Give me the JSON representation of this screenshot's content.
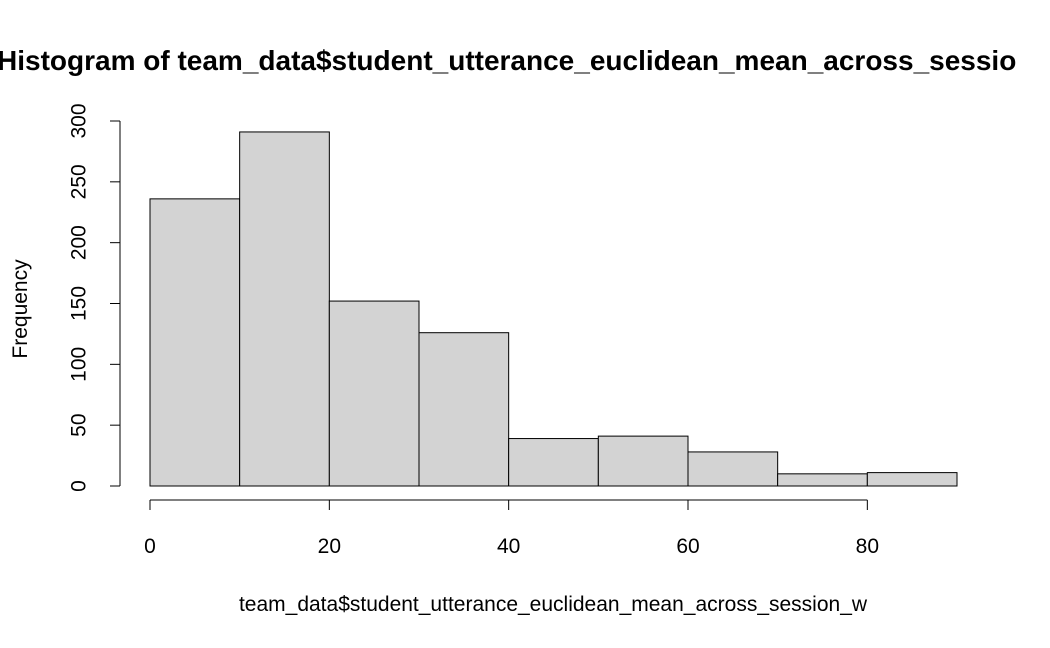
{
  "chart_data": {
    "type": "bar",
    "title": "Histogram of team_data$student_utterance_euclidean_mean_across_sessio",
    "xlabel": "team_data$student_utterance_euclidean_mean_across_session_w",
    "ylabel": "Frequency",
    "bin_edges": [
      0,
      10,
      20,
      30,
      40,
      50,
      60,
      70,
      80,
      90
    ],
    "categories": [
      "0-10",
      "10-20",
      "20-30",
      "30-40",
      "40-50",
      "50-60",
      "60-70",
      "70-80",
      "80-90"
    ],
    "values": [
      236,
      291,
      152,
      126,
      39,
      41,
      28,
      10,
      11
    ],
    "xlim": [
      0,
      90
    ],
    "ylim": [
      0,
      300
    ],
    "x_ticks": [
      0,
      20,
      40,
      60,
      80
    ],
    "y_ticks": [
      0,
      50,
      100,
      150,
      200,
      250,
      300
    ],
    "x_tick_labels": [
      "0",
      "20",
      "40",
      "60",
      "80"
    ],
    "y_tick_labels": [
      "0",
      "50",
      "100",
      "150",
      "200",
      "250",
      "300"
    ],
    "grid": false,
    "colors": {
      "bar_fill": "#d3d3d3",
      "bar_stroke": "#000000",
      "axis": "#000000",
      "background": "#ffffff"
    }
  }
}
